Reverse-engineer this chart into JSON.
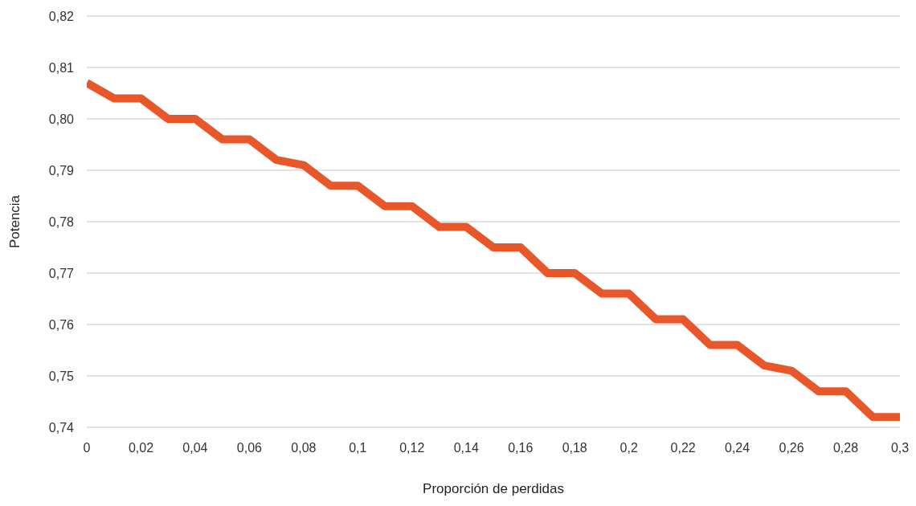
{
  "chart_data": {
    "type": "line",
    "xlabel": "Proporción de perdidas",
    "ylabel": "Potencia",
    "x": [
      0,
      0.01,
      0.02,
      0.03,
      0.04,
      0.05,
      0.06,
      0.07,
      0.08,
      0.09,
      0.1,
      0.11,
      0.12,
      0.13,
      0.14,
      0.15,
      0.16,
      0.17,
      0.18,
      0.19,
      0.2,
      0.21,
      0.22,
      0.23,
      0.24,
      0.25,
      0.26,
      0.27,
      0.28,
      0.29,
      0.3
    ],
    "series": [
      {
        "color": "#e8572a",
        "values": [
          0.807,
          0.804,
          0.804,
          0.8,
          0.8,
          0.796,
          0.796,
          0.792,
          0.791,
          0.787,
          0.787,
          0.783,
          0.783,
          0.779,
          0.779,
          0.775,
          0.775,
          0.77,
          0.77,
          0.766,
          0.766,
          0.761,
          0.761,
          0.756,
          0.756,
          0.752,
          0.751,
          0.747,
          0.747,
          0.742,
          0.742
        ]
      }
    ],
    "xlim": [
      0,
      0.3
    ],
    "xticks": [
      {
        "value": 0,
        "label": "0"
      },
      {
        "value": 0.02,
        "label": "0,02"
      },
      {
        "value": 0.04,
        "label": "0,04"
      },
      {
        "value": 0.06,
        "label": "0,06"
      },
      {
        "value": 0.08,
        "label": "0,08"
      },
      {
        "value": 0.1,
        "label": "0,1"
      },
      {
        "value": 0.12,
        "label": "0,12"
      },
      {
        "value": 0.14,
        "label": "0,14"
      },
      {
        "value": 0.16,
        "label": "0,16"
      },
      {
        "value": 0.18,
        "label": "0,18"
      },
      {
        "value": 0.2,
        "label": "0,2"
      },
      {
        "value": 0.22,
        "label": "0,22"
      },
      {
        "value": 0.24,
        "label": "0,24"
      },
      {
        "value": 0.26,
        "label": "0,26"
      },
      {
        "value": 0.28,
        "label": "0,28"
      },
      {
        "value": 0.3,
        "label": "0,3"
      }
    ],
    "ylim": [
      0.74,
      0.82
    ],
    "yticks": [
      {
        "value": 0.74,
        "label": "0,74"
      },
      {
        "value": 0.75,
        "label": "0,75"
      },
      {
        "value": 0.76,
        "label": "0,76"
      },
      {
        "value": 0.77,
        "label": "0,77"
      },
      {
        "value": 0.78,
        "label": "0,78"
      },
      {
        "value": 0.79,
        "label": "0,79"
      },
      {
        "value": 0.8,
        "label": "0,80"
      },
      {
        "value": 0.81,
        "label": "0,81"
      },
      {
        "value": 0.82,
        "label": "0,82"
      }
    ],
    "grid": "y",
    "legend": false,
    "marker": "none",
    "line_style": "solid"
  }
}
